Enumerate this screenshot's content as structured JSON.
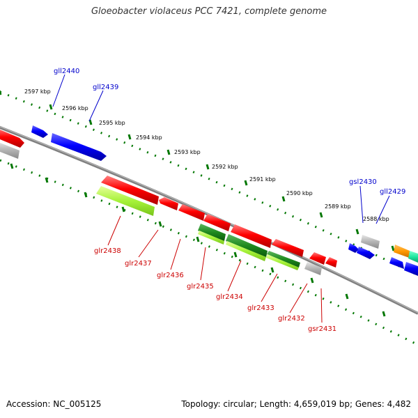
{
  "title": "Gloeobacter violaceus PCC 7421, complete genome",
  "footer": {
    "accession": "Accession: NC_005125",
    "topology": "Topology: circular; Length: 4,659,019 bp; Genes: 4,482"
  },
  "colors": {
    "forward_label": "#0000cc",
    "reverse_label": "#cc0000",
    "tick": "#007700",
    "backbone": "#808080"
  },
  "scale_labels": [
    "2597 kbp",
    "2596 kbp",
    "2595 kbp",
    "2594 kbp",
    "2593 kbp",
    "2592 kbp",
    "2591 kbp",
    "2590 kbp",
    "2589 kbp",
    "2588 kbp"
  ],
  "forward_genes": [
    "gll2440",
    "gll2439",
    "gsl2430",
    "gll2429"
  ],
  "reverse_genes": [
    "glr2438",
    "glr2437",
    "glr2436",
    "glr2435",
    "glr2434",
    "glr2433",
    "glr2432",
    "gsr2431"
  ]
}
